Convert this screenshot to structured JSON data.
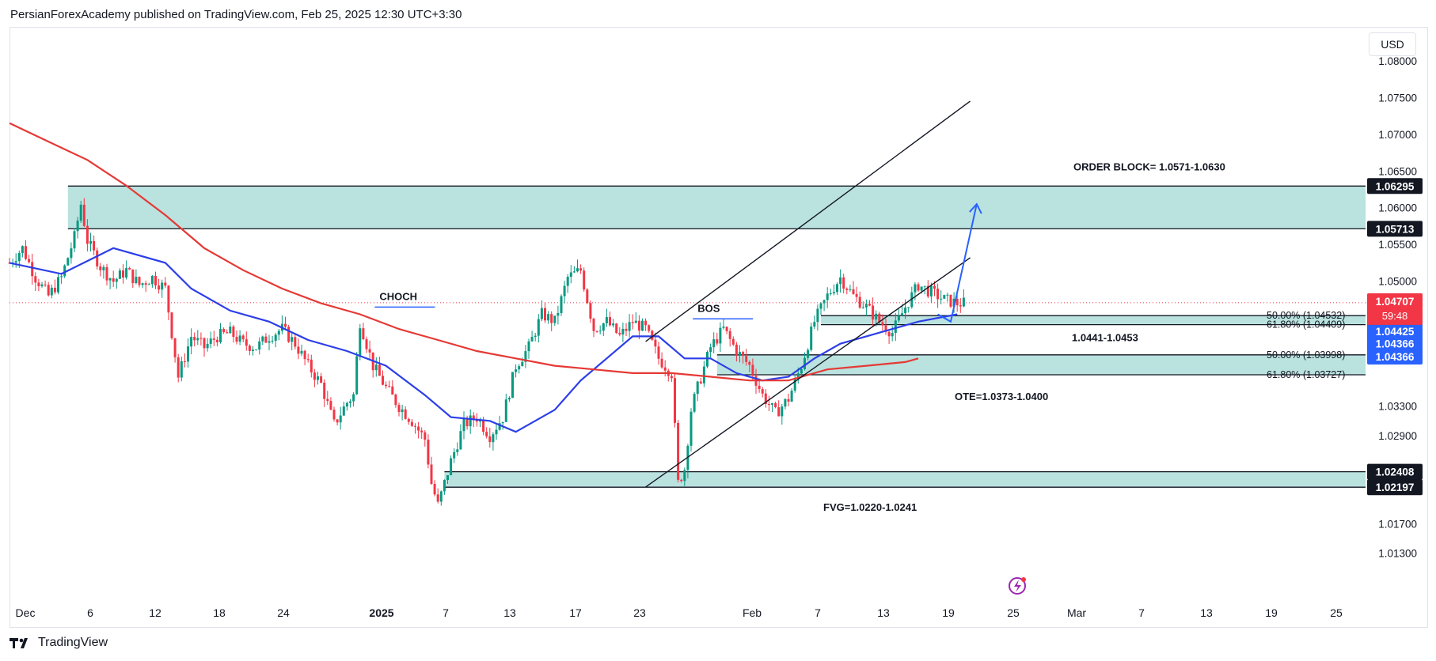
{
  "header": {
    "publisher_line": "PersianForexAcademy published on TradingView.com, Feb 25, 2025 12:30 UTC+3:30"
  },
  "footer": {
    "brand": "TradingView"
  },
  "currency": "USD",
  "chart_data": {
    "type": "candlestick",
    "title": "",
    "xlabel": "",
    "ylabel": "",
    "ylim": [
      1.009,
      1.082
    ],
    "y_ticks": [
      "1.08000",
      "1.07500",
      "1.07000",
      "1.06500",
      "1.06000",
      "1.05500",
      "1.05000",
      "1.04500",
      "1.04000",
      "1.03500",
      "1.03300",
      "1.02900",
      "1.02500",
      "1.02100",
      "1.01700",
      "1.01300",
      "1.00900"
    ],
    "visible_y_ticks": [
      "1.08000",
      "1.07500",
      "1.07000",
      "1.06500",
      "1.06000",
      "1.05500",
      "1.05000",
      "1.03300",
      "1.02900",
      "1.01700",
      "1.01300"
    ],
    "x_ticks": [
      {
        "label": "Dec",
        "bold": false
      },
      {
        "label": "6",
        "bold": false
      },
      {
        "label": "12",
        "bold": false
      },
      {
        "label": "18",
        "bold": false
      },
      {
        "label": "24",
        "bold": false
      },
      {
        "label": "2025",
        "bold": true
      },
      {
        "label": "7",
        "bold": false
      },
      {
        "label": "13",
        "bold": false
      },
      {
        "label": "17",
        "bold": false
      },
      {
        "label": "23",
        "bold": false
      },
      {
        "label": "Feb",
        "bold": false
      },
      {
        "label": "7",
        "bold": false
      },
      {
        "label": "13",
        "bold": false
      },
      {
        "label": "19",
        "bold": false
      },
      {
        "label": "25",
        "bold": false
      },
      {
        "label": "Mar",
        "bold": false
      },
      {
        "label": "7",
        "bold": false
      },
      {
        "label": "13",
        "bold": false
      },
      {
        "label": "19",
        "bold": false
      },
      {
        "label": "25",
        "bold": false
      }
    ],
    "price_path": [
      [
        0,
        1.0525
      ],
      [
        2,
        1.0545
      ],
      [
        4,
        1.0505
      ],
      [
        6,
        1.048
      ],
      [
        8,
        1.0505
      ],
      [
        10,
        1.056
      ],
      [
        11,
        1.0605
      ],
      [
        12,
        1.0555
      ],
      [
        14,
        1.052
      ],
      [
        16,
        1.05
      ],
      [
        18,
        1.0515
      ],
      [
        20,
        1.0495
      ],
      [
        22,
        1.0505
      ],
      [
        24,
        1.049
      ],
      [
        26,
        1.037
      ],
      [
        28,
        1.0425
      ],
      [
        30,
        1.041
      ],
      [
        32,
        1.0425
      ],
      [
        34,
        1.043
      ],
      [
        36,
        1.0415
      ],
      [
        38,
        1.041
      ],
      [
        40,
        1.0425
      ],
      [
        42,
        1.0435
      ],
      [
        44,
        1.0415
      ],
      [
        46,
        1.0385
      ],
      [
        48,
        1.036
      ],
      [
        50,
        1.0305
      ],
      [
        52,
        1.0335
      ],
      [
        53,
        1.0345
      ],
      [
        54,
        1.0445
      ],
      [
        56,
        1.0385
      ],
      [
        58,
        1.0355
      ],
      [
        60,
        1.033
      ],
      [
        62,
        1.031
      ],
      [
        64,
        1.0285
      ],
      [
        65,
        1.0225
      ],
      [
        66,
        1.0195
      ],
      [
        68,
        1.0255
      ],
      [
        70,
        1.0305
      ],
      [
        72,
        1.0315
      ],
      [
        74,
        1.029
      ],
      [
        76,
        1.0315
      ],
      [
        78,
        1.0385
      ],
      [
        80,
        1.041
      ],
      [
        82,
        1.0455
      ],
      [
        84,
        1.0445
      ],
      [
        86,
        1.0505
      ],
      [
        88,
        1.0515
      ],
      [
        90,
        1.0435
      ],
      [
        92,
        1.0445
      ],
      [
        94,
        1.0425
      ],
      [
        96,
        1.0445
      ],
      [
        98,
        1.0435
      ],
      [
        100,
        1.0395
      ],
      [
        102,
        1.0375
      ],
      [
        103,
        1.0225
      ],
      [
        104,
        1.0245
      ],
      [
        105,
        1.0325
      ],
      [
        106,
        1.0355
      ],
      [
        108,
        1.041
      ],
      [
        110,
        1.0435
      ],
      [
        112,
        1.0405
      ],
      [
        114,
        1.0385
      ],
      [
        116,
        1.0345
      ],
      [
        118,
        1.032
      ],
      [
        120,
        1.034
      ],
      [
        122,
        1.0385
      ],
      [
        124,
        1.0445
      ],
      [
        126,
        1.048
      ],
      [
        128,
        1.0505
      ],
      [
        130,
        1.048
      ],
      [
        132,
        1.0465
      ],
      [
        134,
        1.0445
      ],
      [
        136,
        1.043
      ],
      [
        138,
        1.0465
      ],
      [
        140,
        1.0495
      ],
      [
        142,
        1.0485
      ],
      [
        144,
        1.0475
      ],
      [
        146,
        1.047
      ],
      [
        147,
        1.047
      ]
    ],
    "series": [
      {
        "name": "",
        "type": "ma",
        "color": "#2c3ee8",
        "values": [
          [
            0,
            1.0525
          ],
          [
            8,
            1.051
          ],
          [
            16,
            1.0545
          ],
          [
            24,
            1.0525
          ],
          [
            28,
            1.049
          ],
          [
            34,
            1.046
          ],
          [
            40,
            1.0445
          ],
          [
            46,
            1.042
          ],
          [
            52,
            1.0405
          ],
          [
            58,
            1.0385
          ],
          [
            64,
            1.0345
          ],
          [
            68,
            1.0315
          ],
          [
            74,
            1.031
          ],
          [
            78,
            1.0295
          ],
          [
            84,
            1.0325
          ],
          [
            88,
            1.0365
          ],
          [
            92,
            1.0395
          ],
          [
            96,
            1.0425
          ],
          [
            100,
            1.0425
          ],
          [
            104,
            1.0395
          ],
          [
            108,
            1.0395
          ],
          [
            112,
            1.0375
          ],
          [
            116,
            1.0365
          ],
          [
            120,
            1.037
          ],
          [
            124,
            1.0395
          ],
          [
            128,
            1.0415
          ],
          [
            132,
            1.0425
          ],
          [
            136,
            1.0435
          ],
          [
            140,
            1.0445
          ],
          [
            146,
            1.0455
          ]
        ]
      },
      {
        "name": "",
        "type": "ma",
        "color": "#e53935",
        "values": [
          [
            0,
            1.0715
          ],
          [
            6,
            1.069
          ],
          [
            12,
            1.0665
          ],
          [
            18,
            1.063
          ],
          [
            24,
            1.059
          ],
          [
            30,
            1.0545
          ],
          [
            36,
            1.0515
          ],
          [
            42,
            1.049
          ],
          [
            48,
            1.047
          ],
          [
            54,
            1.0455
          ],
          [
            60,
            1.0435
          ],
          [
            66,
            1.042
          ],
          [
            72,
            1.0405
          ],
          [
            78,
            1.0395
          ],
          [
            84,
            1.0385
          ],
          [
            90,
            1.038
          ],
          [
            96,
            1.0375
          ],
          [
            102,
            1.0375
          ],
          [
            108,
            1.037
          ],
          [
            114,
            1.0365
          ],
          [
            120,
            1.0365
          ],
          [
            126,
            1.038
          ],
          [
            132,
            1.0385
          ],
          [
            138,
            1.039
          ],
          [
            140,
            1.0395
          ]
        ]
      }
    ],
    "zones": [
      {
        "name": "order-block-zone",
        "from": 1.05713,
        "to": 1.06295,
        "x_start": 9,
        "label": "ORDER BLOCK= 1.0571-1.0630"
      },
      {
        "name": "fvg-zone",
        "from": 1.02197,
        "to": 1.02408,
        "x_start": 67,
        "label": "FVG=1.0220-1.0241"
      },
      {
        "name": "ote-zone",
        "from": 1.03727,
        "to": 1.03998,
        "x_start": 109,
        "label": "OTE=1.0373-1.0400"
      },
      {
        "name": "upper-zone",
        "from": 1.04409,
        "to": 1.04532,
        "x_start": 125,
        "label": "1.0441-1.0453"
      }
    ],
    "fib_labels": [
      {
        "text": "50.00% (1.04532)",
        "price": 1.04532
      },
      {
        "text": "61.80% (1.04409)",
        "price": 1.04409
      },
      {
        "text": "50.00% (1.03998)",
        "price": 1.03998
      },
      {
        "text": "61.80% (1.03727)",
        "price": 1.03727
      }
    ],
    "annotations": [
      {
        "text": "CHOCH",
        "x": 57,
        "price": 1.0468
      },
      {
        "text": "BOS",
        "x": 106,
        "price": 1.0452
      }
    ],
    "channel": {
      "lower": [
        [
          98,
          1.022
        ],
        [
          148,
          1.0532
        ]
      ],
      "upper": [
        [
          98,
          1.0418
        ],
        [
          148,
          1.0745
        ]
      ]
    },
    "projection": [
      [
        143,
        1.0455
      ],
      [
        145,
        1.0445
      ],
      [
        149,
        1.0605
      ]
    ],
    "price_labels": [
      {
        "text": "1.06295",
        "price": 1.06295,
        "bg": "#131722",
        "fg": "#ffffff"
      },
      {
        "text": "1.05713",
        "price": 1.05713,
        "bg": "#131722",
        "fg": "#ffffff"
      },
      {
        "text": "1.04425",
        "price": 1.04425,
        "bg": "#2962ff",
        "fg": "#ffffff"
      },
      {
        "text": "1.04425",
        "price": 1.0432,
        "bg": "#2962ff",
        "fg": "#ffffff"
      },
      {
        "text": "1.04366",
        "price": 1.0415,
        "bg": "#2962ff",
        "fg": "#ffffff"
      },
      {
        "text": "1.04366",
        "price": 1.03975,
        "bg": "#2962ff",
        "fg": "#ffffff"
      },
      {
        "text": "1.02408",
        "price": 1.02408,
        "bg": "#131722",
        "fg": "#ffffff"
      },
      {
        "text": "1.02197",
        "price": 1.02197,
        "bg": "#131722",
        "fg": "#ffffff"
      }
    ],
    "current_price": {
      "text": "1.04707",
      "countdown": "59:48",
      "price": 1.04707,
      "bg": "#f23645"
    },
    "colors": {
      "up": "#089981",
      "down": "#f23645",
      "zone": "#b2dfdb",
      "grid": "#f0f3fa"
    }
  }
}
